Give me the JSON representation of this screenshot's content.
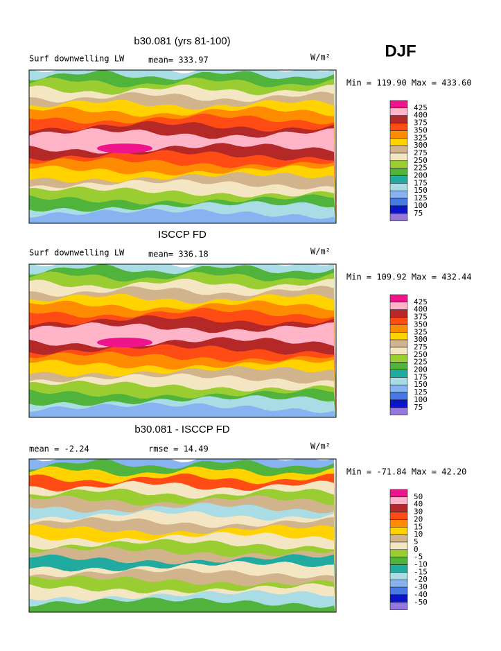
{
  "figure": {
    "season": "DJF",
    "panels": [
      {
        "title": "b30.081 (yrs 81-100)",
        "variable": "Surf downwelling LW",
        "stat1": "mean= 333.97",
        "units": "W/m²",
        "range": "Min = 119.90 Max = 433.60",
        "colorbar": {
          "levels": [
            425,
            400,
            375,
            350,
            325,
            300,
            275,
            250,
            225,
            200,
            175,
            150,
            125,
            100,
            75
          ],
          "colors": [
            "#f0148c",
            "#ffb4c8",
            "#b42828",
            "#ff4b14",
            "#ff8c00",
            "#ffd200",
            "#d2b48c",
            "#f5e6c3",
            "#9acd32",
            "#50b43c",
            "#20aaa0",
            "#aadce6",
            "#87b4f0",
            "#4678e6",
            "#0a14c8",
            "#9678dc"
          ]
        }
      },
      {
        "title": "ISCCP FD",
        "variable": "Surf downwelling LW",
        "stat1": "mean= 336.18",
        "units": "W/m²",
        "range": "Min = 109.92 Max = 432.44",
        "colorbar": {
          "levels": [
            425,
            400,
            375,
            350,
            325,
            300,
            275,
            250,
            225,
            200,
            175,
            150,
            125,
            100,
            75
          ],
          "colors": [
            "#f0148c",
            "#ffb4c8",
            "#b42828",
            "#ff4b14",
            "#ff8c00",
            "#ffd200",
            "#d2b48c",
            "#f5e6c3",
            "#9acd32",
            "#50b43c",
            "#20aaa0",
            "#aadce6",
            "#87b4f0",
            "#4678e6",
            "#0a14c8",
            "#9678dc"
          ]
        }
      },
      {
        "title": "b30.081 - ISCCP FD",
        "stat1": "mean =  -2.24",
        "stat2": "rmse =  14.49",
        "units": "W/m²",
        "range": "Min = -71.84 Max =  42.20",
        "colorbar": {
          "levels": [
            50,
            40,
            30,
            20,
            15,
            10,
            5,
            0,
            -5,
            -10,
            -15,
            -20,
            -30,
            -40,
            -50
          ],
          "colors": [
            "#f0148c",
            "#ffb4c8",
            "#b42828",
            "#ff4b14",
            "#ff8c00",
            "#ffd200",
            "#d2b48c",
            "#f5e6c3",
            "#9acd32",
            "#50b43c",
            "#20aaa0",
            "#aadce6",
            "#87b4f0",
            "#4678e6",
            "#0a14c8",
            "#9678dc"
          ]
        }
      }
    ]
  }
}
